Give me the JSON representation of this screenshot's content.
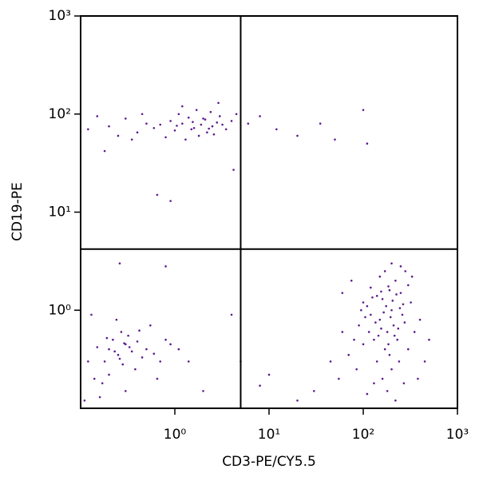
{
  "chart_data": {
    "type": "scatter",
    "x_label": "CD3-PE/CY5.5",
    "y_label": "CD19-PE",
    "log_x": true,
    "log_y": true,
    "xlim": [
      0.1,
      1000
    ],
    "ylim": [
      0.1,
      1000
    ],
    "xticks": [
      {
        "value": 1,
        "label": "10⁰"
      },
      {
        "value": 10,
        "label": "10¹"
      },
      {
        "value": 100,
        "label": "10²"
      },
      {
        "value": 1000,
        "label": "10³"
      }
    ],
    "yticks": [
      {
        "value": 1,
        "label": "10⁰"
      },
      {
        "value": 10,
        "label": "10¹"
      },
      {
        "value": 100,
        "label": "10²"
      },
      {
        "value": 1000,
        "label": "10³"
      }
    ],
    "quadrant_x": 5,
    "quadrant_y": 4.2,
    "color": "#5b1a8e",
    "points": [
      [
        1.2,
        80
      ],
      [
        1.5,
        70
      ],
      [
        2.0,
        90
      ],
      [
        2.5,
        75
      ],
      [
        1.8,
        60
      ],
      [
        0.9,
        85
      ],
      [
        3.0,
        95
      ],
      [
        2.2,
        65
      ],
      [
        1.1,
        100
      ],
      [
        1.6,
        72
      ],
      [
        2.8,
        82
      ],
      [
        0.7,
        78
      ],
      [
        1.3,
        55
      ],
      [
        2.4,
        105
      ],
      [
        3.5,
        70
      ],
      [
        0.5,
        80
      ],
      [
        0.4,
        65
      ],
      [
        0.3,
        90
      ],
      [
        0.2,
        75
      ],
      [
        0.15,
        95
      ],
      [
        0.12,
        70
      ],
      [
        1.9,
        78
      ],
      [
        2.1,
        88
      ],
      [
        1.4,
        92
      ],
      [
        1.0,
        68
      ],
      [
        0.8,
        58
      ],
      [
        4.0,
        85
      ],
      [
        4.5,
        100
      ],
      [
        2.6,
        62
      ],
      [
        1.7,
        110
      ],
      [
        3.2,
        78
      ],
      [
        0.6,
        72
      ],
      [
        0.25,
        60
      ],
      [
        1.2,
        120
      ],
      [
        2.9,
        130
      ],
      [
        0.45,
        100
      ],
      [
        0.35,
        55
      ],
      [
        1.05,
        76
      ],
      [
        1.55,
        83
      ],
      [
        2.3,
        71
      ],
      [
        0.65,
        15
      ],
      [
        0.9,
        13
      ],
      [
        4.2,
        27
      ],
      [
        0.18,
        42
      ],
      [
        6,
        80
      ],
      [
        8,
        95
      ],
      [
        12,
        70
      ],
      [
        20,
        60
      ],
      [
        35,
        80
      ],
      [
        100,
        110
      ],
      [
        50,
        55
      ],
      [
        110,
        50
      ],
      [
        0.2,
        0.4
      ],
      [
        0.25,
        0.35
      ],
      [
        0.3,
        0.45
      ],
      [
        0.18,
        0.3
      ],
      [
        0.22,
        0.5
      ],
      [
        0.28,
        0.28
      ],
      [
        0.35,
        0.38
      ],
      [
        0.15,
        0.42
      ],
      [
        0.12,
        0.3
      ],
      [
        0.4,
        0.48
      ],
      [
        0.45,
        0.33
      ],
      [
        0.5,
        0.4
      ],
      [
        0.6,
        0.36
      ],
      [
        0.32,
        0.55
      ],
      [
        0.27,
        0.6
      ],
      [
        0.2,
        0.22
      ],
      [
        0.17,
        0.18
      ],
      [
        0.38,
        0.25
      ],
      [
        0.7,
        0.3
      ],
      [
        0.8,
        0.5
      ],
      [
        0.55,
        0.7
      ],
      [
        0.24,
        0.8
      ],
      [
        0.11,
        0.12
      ],
      [
        0.14,
        0.2
      ],
      [
        0.3,
        0.15
      ],
      [
        0.42,
        0.62
      ],
      [
        0.65,
        0.2
      ],
      [
        0.9,
        0.45
      ],
      [
        1.1,
        0.4
      ],
      [
        1.4,
        0.3
      ],
      [
        0.19,
        0.52
      ],
      [
        0.33,
        0.42
      ],
      [
        0.26,
        0.32
      ],
      [
        0.23,
        0.38
      ],
      [
        0.29,
        0.46
      ],
      [
        0.13,
        0.9
      ],
      [
        0.26,
        3.0
      ],
      [
        0.8,
        2.8
      ],
      [
        4,
        0.9
      ],
      [
        0.16,
        0.13
      ],
      [
        2,
        0.15
      ],
      [
        5,
        0.3
      ],
      [
        100,
        1.2
      ],
      [
        150,
        0.8
      ],
      [
        200,
        1.0
      ],
      [
        250,
        1.5
      ],
      [
        180,
        0.6
      ],
      [
        130,
        0.5
      ],
      [
        220,
        2.0
      ],
      [
        160,
        1.3
      ],
      [
        120,
        0.9
      ],
      [
        300,
        1.8
      ],
      [
        170,
        0.4
      ],
      [
        140,
        0.3
      ],
      [
        210,
        0.7
      ],
      [
        190,
        1.6
      ],
      [
        110,
        1.1
      ],
      [
        260,
        0.9
      ],
      [
        230,
        0.5
      ],
      [
        150,
        2.2
      ],
      [
        280,
        2.5
      ],
      [
        90,
        0.7
      ],
      [
        80,
        0.5
      ],
      [
        70,
        0.35
      ],
      [
        60,
        0.6
      ],
      [
        200,
        0.25
      ],
      [
        160,
        0.2
      ],
      [
        240,
        0.3
      ],
      [
        180,
        0.15
      ],
      [
        130,
        0.18
      ],
      [
        300,
        0.4
      ],
      [
        350,
        0.6
      ],
      [
        400,
        0.8
      ],
      [
        320,
        1.2
      ],
      [
        250,
        2.8
      ],
      [
        200,
        3.0
      ],
      [
        170,
        2.5
      ],
      [
        120,
        1.7
      ],
      [
        100,
        0.45
      ],
      [
        85,
        0.25
      ],
      [
        110,
        0.14
      ],
      [
        220,
        0.12
      ],
      [
        190,
        0.35
      ],
      [
        140,
        1.4
      ],
      [
        175,
        1.1
      ],
      [
        205,
        1.25
      ],
      [
        155,
        0.65
      ],
      [
        135,
        0.75
      ],
      [
        195,
        0.85
      ],
      [
        215,
        0.55
      ],
      [
        165,
        0.95
      ],
      [
        245,
        1.05
      ],
      [
        125,
        1.35
      ],
      [
        185,
        1.75
      ],
      [
        265,
        1.15
      ],
      [
        105,
        0.85
      ],
      [
        145,
        0.55
      ],
      [
        235,
        0.65
      ],
      [
        275,
        0.75
      ],
      [
        95,
        1.0
      ],
      [
        225,
        1.45
      ],
      [
        155,
        1.55
      ],
      [
        450,
        0.3
      ],
      [
        500,
        0.5
      ],
      [
        55,
        0.2
      ],
      [
        45,
        0.3
      ],
      [
        30,
        0.15
      ],
      [
        20,
        0.12
      ],
      [
        10,
        0.22
      ],
      [
        8,
        0.17
      ],
      [
        270,
        0.18
      ],
      [
        380,
        0.2
      ],
      [
        60,
        1.5
      ],
      [
        75,
        2.0
      ],
      [
        330,
        2.2
      ],
      [
        115,
        0.6
      ],
      [
        185,
        0.45
      ]
    ]
  }
}
